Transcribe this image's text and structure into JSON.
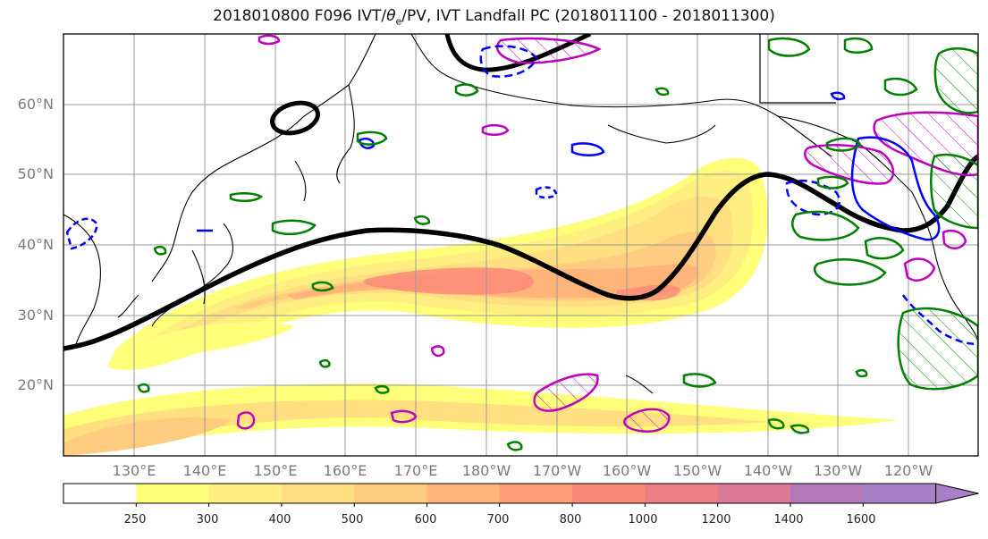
{
  "title_prefix": "2018010800 F096 IVT/",
  "title_theta": "θ",
  "title_sub": "e",
  "title_suffix": "/PV, IVT Landfall PC (2018011100 - 2018011300)",
  "lat_labels": [
    "60°N",
    "50°N",
    "40°N",
    "30°N",
    "20°N"
  ],
  "lon_labels": [
    "130°E",
    "140°E",
    "150°E",
    "160°E",
    "170°E",
    "180°W",
    "170°W",
    "160°W",
    "150°W",
    "140°W",
    "130°W",
    "120°W"
  ],
  "colorbar": {
    "ticks": [
      "250",
      "300",
      "400",
      "500",
      "600",
      "700",
      "800",
      "1000",
      "1200",
      "1400",
      "1600"
    ],
    "colors": [
      "#ffffff",
      "#ffff7a",
      "#ffee80",
      "#ffdf80",
      "#ffcc80",
      "#ffb57a",
      "#ff9e78",
      "#fb8a78",
      "#f07f85",
      "#dc7a98",
      "#b57ab8",
      "#a77fc6"
    ]
  },
  "legend_colors": {
    "ivt_low": "#ffff7a",
    "ivt_high": "#fb8a78",
    "theta_contour": "#000000",
    "pv_magenta": "#c000c0",
    "pv_blue": "#0000ff",
    "pv_green": "#008000"
  }
}
